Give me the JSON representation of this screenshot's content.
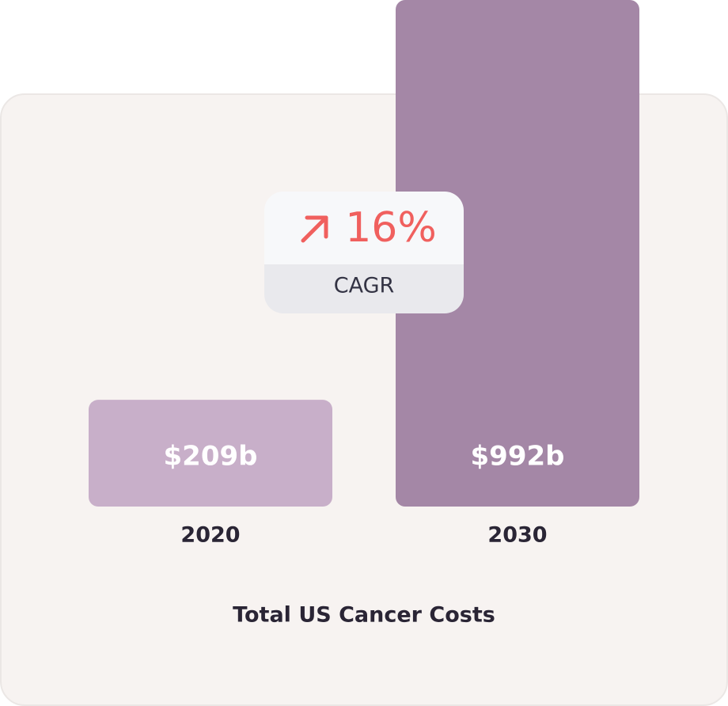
{
  "chart_data": {
    "type": "bar",
    "title": "Total US Cancer Costs",
    "categories": [
      "2020",
      "2030"
    ],
    "values": [
      209,
      992
    ],
    "value_labels": [
      "$209b",
      "$992b"
    ],
    "colors": [
      "#c8afc9",
      "#a487a6"
    ],
    "annotation": {
      "text": "16%",
      "label": "CAGR"
    }
  }
}
